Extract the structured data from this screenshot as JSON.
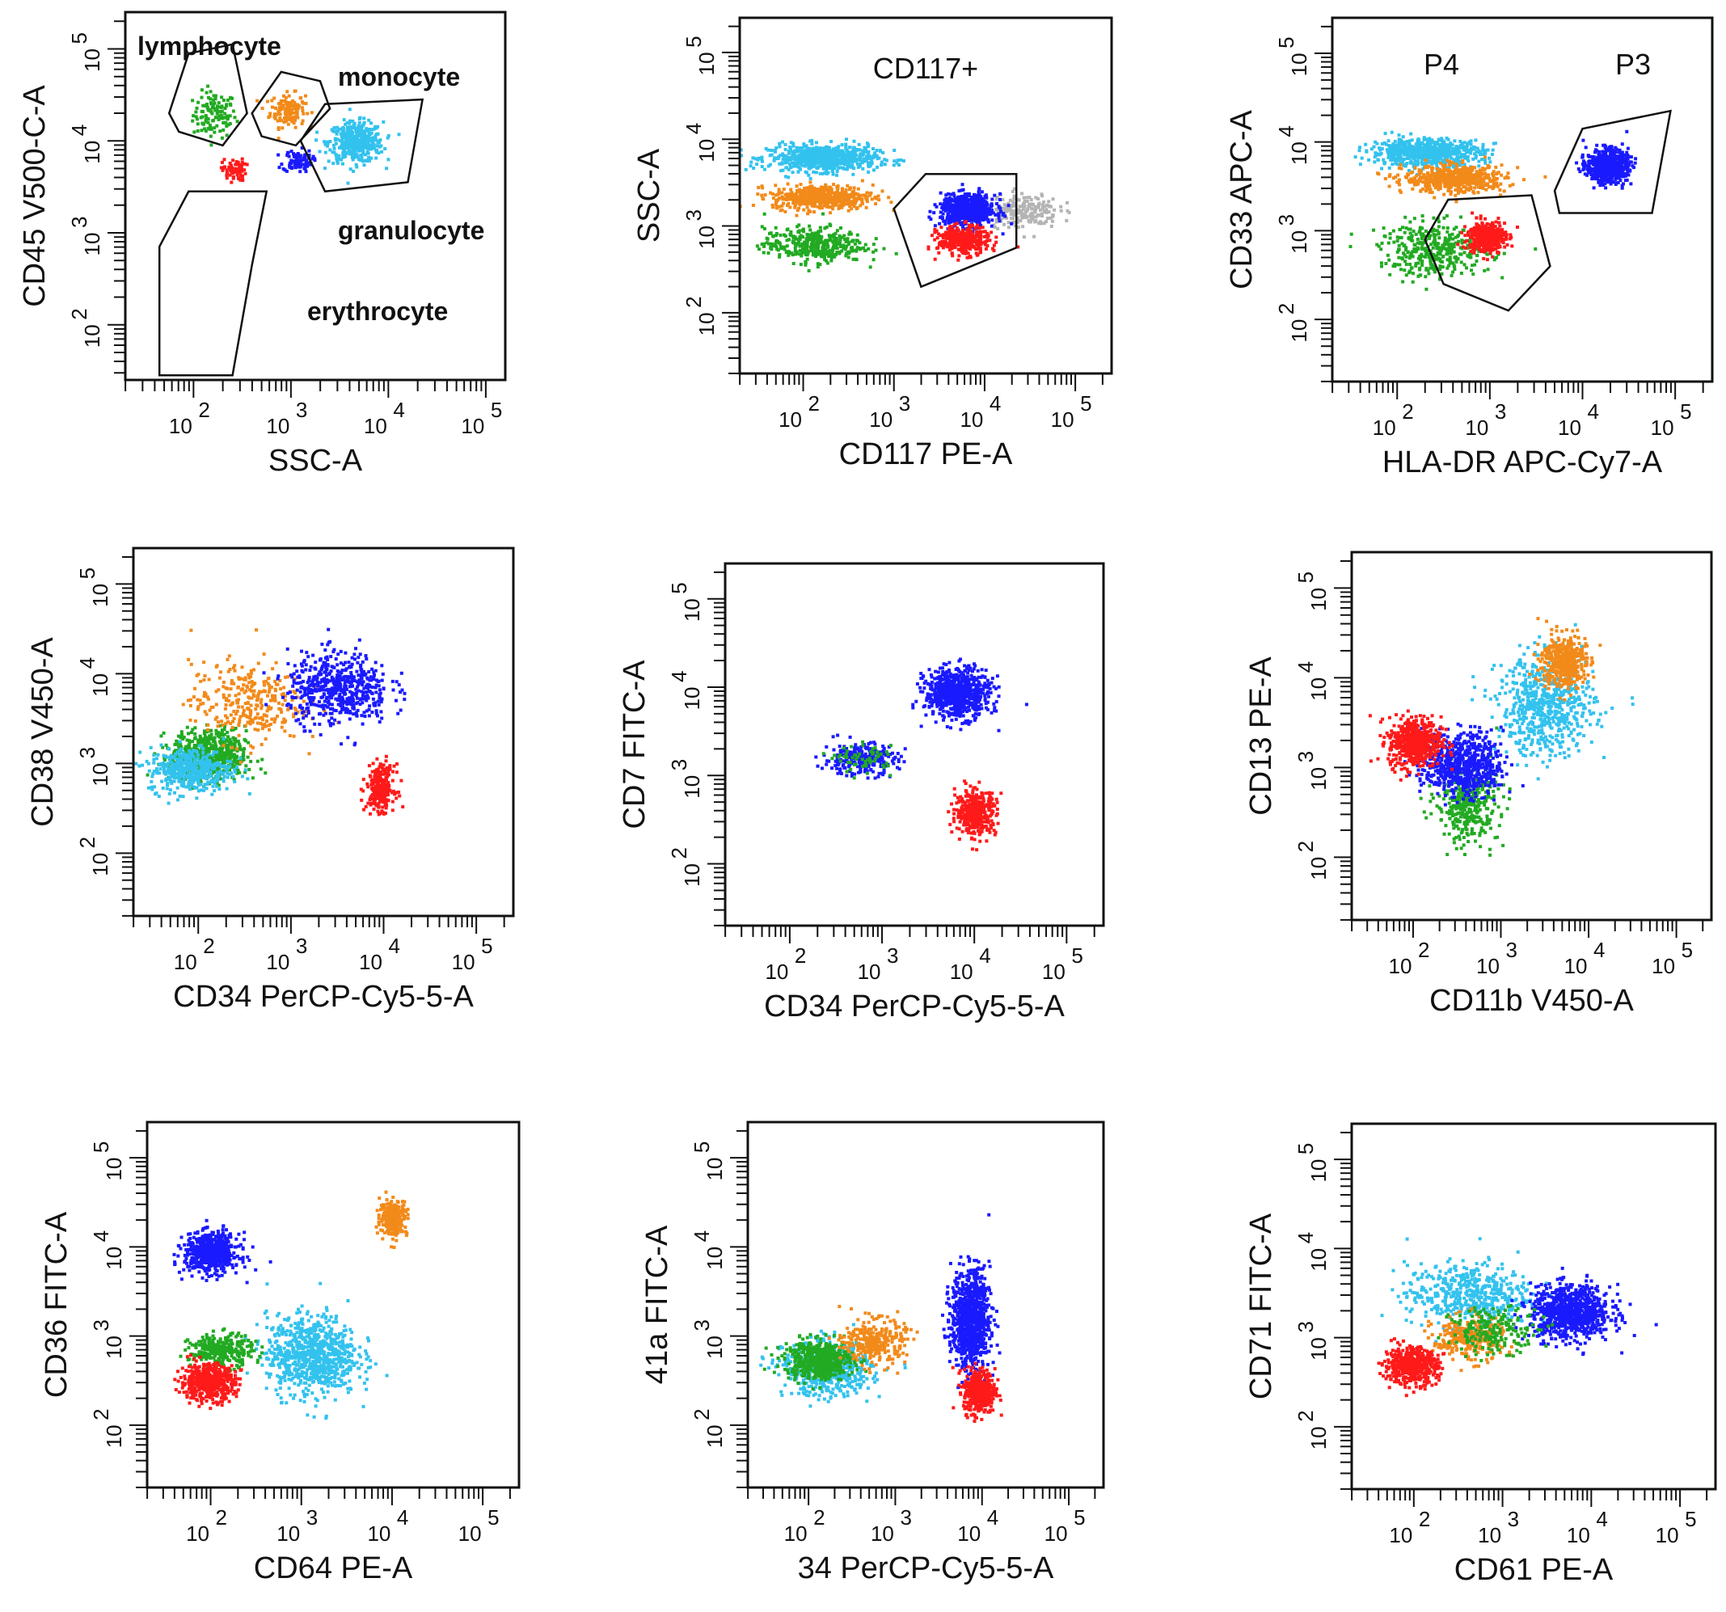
{
  "figure": {
    "description_visible": false
  },
  "colors": {
    "blue": "#1a1aff",
    "red": "#ff1a1a",
    "green": "#22aa22",
    "orange": "#f28a1a",
    "cyan": "#33c2ee",
    "gray": "#b4b4b4",
    "pink": "#f2b8e8",
    "axis": "#111111"
  },
  "chart_data": [
    {
      "type": "scatter",
      "title": "",
      "xlabel": "SSC-A",
      "ylabel": "CD45 V500-C-A",
      "x_ticks": [
        "10",
        "10",
        "10",
        "10"
      ],
      "x_tick_exponents": [
        "2",
        "3",
        "4",
        "5"
      ],
      "y_ticks": [
        "10",
        "10",
        "10",
        "10"
      ],
      "y_tick_exponents": [
        "2",
        "3",
        "4",
        "5"
      ],
      "xlim": [
        1.3,
        5.2
      ],
      "ylim": [
        1.4,
        5.4
      ],
      "scale": "log10",
      "gates": [
        {
          "name": "lymphocyte",
          "points": [
            [
              1.75,
              4.3
            ],
            [
              1.95,
              4.95
            ],
            [
              2.4,
              5.05
            ],
            [
              2.55,
              4.3
            ],
            [
              2.3,
              3.95
            ],
            [
              1.85,
              4.1
            ]
          ]
        },
        {
          "name": "monocyte",
          "points": [
            [
              2.6,
              4.3
            ],
            [
              2.9,
              4.75
            ],
            [
              3.3,
              4.65
            ],
            [
              3.4,
              4.35
            ],
            [
              3.05,
              3.95
            ],
            [
              2.7,
              4.05
            ]
          ]
        },
        {
          "name": "granulocyte",
          "points": [
            [
              3.1,
              4.0
            ],
            [
              3.35,
              4.4
            ],
            [
              4.35,
              4.45
            ],
            [
              4.2,
              3.55
            ],
            [
              3.35,
              3.45
            ]
          ]
        },
        {
          "name": "erythrocyte",
          "points": [
            [
              1.65,
              1.45
            ],
            [
              1.65,
              2.85
            ],
            [
              1.95,
              3.45
            ],
            [
              2.75,
              3.45
            ],
            [
              2.6,
              2.65
            ],
            [
              2.4,
              1.45
            ]
          ]
        }
      ],
      "series": [
        {
          "name": "green",
          "color": "green",
          "center": [
            2.2,
            4.3
          ],
          "spread": [
            0.22,
            0.25
          ],
          "count": 120
        },
        {
          "name": "orange",
          "color": "orange",
          "center": [
            2.95,
            4.35
          ],
          "spread": [
            0.18,
            0.18
          ],
          "count": 150
        },
        {
          "name": "cyan",
          "color": "cyan",
          "center": [
            3.65,
            4.0
          ],
          "spread": [
            0.28,
            0.22
          ],
          "count": 420
        },
        {
          "name": "blue",
          "color": "blue",
          "center": [
            3.05,
            3.8
          ],
          "spread": [
            0.15,
            0.12
          ],
          "count": 90
        },
        {
          "name": "red",
          "color": "red",
          "center": [
            2.4,
            3.7
          ],
          "spread": [
            0.12,
            0.12
          ],
          "count": 70
        }
      ]
    },
    {
      "type": "scatter",
      "title": "CD117+",
      "xlabel": "CD117 PE-A",
      "ylabel": "SSC-A",
      "x_ticks": [
        "10",
        "10",
        "10",
        "10"
      ],
      "x_tick_exponents": [
        "2",
        "3",
        "4",
        "5"
      ],
      "y_ticks": [
        "10",
        "10",
        "10",
        "10"
      ],
      "y_tick_exponents": [
        "2",
        "3",
        "4",
        "5"
      ],
      "xlim": [
        1.3,
        5.4
      ],
      "ylim": [
        1.3,
        5.4
      ],
      "scale": "log10",
      "gates": [
        {
          "name": "CD117+",
          "points": [
            [
              3.0,
              3.2
            ],
            [
              3.3,
              2.3
            ],
            [
              4.35,
              2.75
            ],
            [
              4.35,
              3.6
            ],
            [
              3.35,
              3.6
            ]
          ]
        }
      ],
      "series": [
        {
          "name": "cyan",
          "color": "cyan",
          "center": [
            2.2,
            3.8
          ],
          "spread": [
            0.6,
            0.15
          ],
          "count": 700
        },
        {
          "name": "orange",
          "color": "orange",
          "center": [
            2.2,
            3.35
          ],
          "spread": [
            0.55,
            0.14
          ],
          "count": 500
        },
        {
          "name": "green",
          "color": "green",
          "center": [
            2.1,
            2.8
          ],
          "spread": [
            0.55,
            0.2
          ],
          "count": 380
        },
        {
          "name": "gray",
          "color": "gray",
          "center": [
            4.4,
            3.2
          ],
          "spread": [
            0.4,
            0.2
          ],
          "count": 200
        },
        {
          "name": "blue",
          "color": "blue",
          "center": [
            3.8,
            3.2
          ],
          "spread": [
            0.3,
            0.18
          ],
          "count": 650
        },
        {
          "name": "red",
          "color": "red",
          "center": [
            3.75,
            2.85
          ],
          "spread": [
            0.28,
            0.16
          ],
          "count": 360
        }
      ]
    },
    {
      "type": "scatter",
      "title": "",
      "xlabel": "HLA-DR APC-Cy7-A",
      "ylabel": "CD33 APC-A",
      "x_ticks": [
        "10",
        "10",
        "10",
        "10"
      ],
      "x_tick_exponents": [
        "2",
        "3",
        "4",
        "5"
      ],
      "y_ticks": [
        "10",
        "10",
        "10",
        "10"
      ],
      "y_tick_exponents": [
        "2",
        "3",
        "4",
        "5"
      ],
      "xlim": [
        1.3,
        5.4
      ],
      "ylim": [
        1.3,
        5.4
      ],
      "scale": "log10",
      "gate_labels": [
        "P4",
        "P3"
      ],
      "gates": [
        {
          "name": "P4",
          "points": [
            [
              2.3,
              2.9
            ],
            [
              2.55,
              3.35
            ],
            [
              3.45,
              3.4
            ],
            [
              3.65,
              2.6
            ],
            [
              3.2,
              2.1
            ],
            [
              2.5,
              2.4
            ]
          ]
        },
        {
          "name": "P3",
          "points": [
            [
              3.7,
              3.45
            ],
            [
              4.0,
              4.15
            ],
            [
              4.95,
              4.35
            ],
            [
              4.75,
              3.2
            ],
            [
              3.75,
              3.2
            ]
          ]
        }
      ],
      "series": [
        {
          "name": "cyan",
          "color": "cyan",
          "center": [
            2.3,
            3.9
          ],
          "spread": [
            0.6,
            0.15
          ],
          "count": 700
        },
        {
          "name": "orange",
          "color": "orange",
          "center": [
            2.6,
            3.6
          ],
          "spread": [
            0.55,
            0.15
          ],
          "count": 550
        },
        {
          "name": "green",
          "color": "green",
          "center": [
            2.4,
            2.8
          ],
          "spread": [
            0.6,
            0.3
          ],
          "count": 380
        },
        {
          "name": "red",
          "color": "red",
          "center": [
            2.95,
            2.95
          ],
          "spread": [
            0.2,
            0.18
          ],
          "count": 380
        },
        {
          "name": "blue",
          "color": "blue",
          "center": [
            4.25,
            3.75
          ],
          "spread": [
            0.22,
            0.18
          ],
          "count": 620
        }
      ]
    },
    {
      "type": "scatter",
      "title": "",
      "xlabel": "CD34 PerCP-Cy5-5-A",
      "ylabel": "CD38 V450-A",
      "x_ticks": [
        "10",
        "10",
        "10",
        "10"
      ],
      "x_tick_exponents": [
        "2",
        "3",
        "4",
        "5"
      ],
      "y_ticks": [
        "10",
        "10",
        "10",
        "10"
      ],
      "y_tick_exponents": [
        "2",
        "3",
        "4",
        "5"
      ],
      "xlim": [
        1.3,
        5.4
      ],
      "ylim": [
        1.3,
        5.4
      ],
      "scale": "log10",
      "gates": [],
      "series": [
        {
          "name": "green",
          "color": "green",
          "center": [
            2.1,
            3.1
          ],
          "spread": [
            0.4,
            0.28
          ],
          "count": 620
        },
        {
          "name": "cyan",
          "color": "cyan",
          "center": [
            1.9,
            2.95
          ],
          "spread": [
            0.45,
            0.25
          ],
          "count": 420
        },
        {
          "name": "orange",
          "color": "orange",
          "center": [
            2.5,
            3.7
          ],
          "spread": [
            0.6,
            0.45
          ],
          "count": 300
        },
        {
          "name": "blue",
          "color": "blue",
          "center": [
            3.5,
            3.85
          ],
          "spread": [
            0.55,
            0.4
          ],
          "count": 560
        },
        {
          "name": "red",
          "color": "red",
          "center": [
            3.95,
            2.75
          ],
          "spread": [
            0.15,
            0.25
          ],
          "count": 260
        }
      ]
    },
    {
      "type": "scatter",
      "title": "",
      "xlabel": "CD34 PerCP-Cy5-5-A",
      "ylabel": "CD7 FITC-A",
      "x_ticks": [
        "10",
        "10",
        "10",
        "10"
      ],
      "x_tick_exponents": [
        "2",
        "3",
        "4",
        "5"
      ],
      "y_ticks": [
        "10",
        "10",
        "10",
        "10"
      ],
      "y_tick_exponents": [
        "2",
        "3",
        "4",
        "5"
      ],
      "xlim": [
        1.3,
        5.4
      ],
      "ylim": [
        1.3,
        5.4
      ],
      "scale": "log10",
      "gates": [],
      "series": [
        {
          "name": "blue",
          "color": "blue",
          "center": [
            3.8,
            3.95
          ],
          "spread": [
            0.35,
            0.28
          ],
          "count": 700
        },
        {
          "name": "blue-low",
          "color": "blue",
          "center": [
            2.75,
            3.2
          ],
          "spread": [
            0.4,
            0.18
          ],
          "count": 260
        },
        {
          "name": "red",
          "color": "red",
          "center": [
            4.0,
            2.6
          ],
          "spread": [
            0.22,
            0.25
          ],
          "count": 400
        },
        {
          "name": "green",
          "color": "green",
          "center": [
            2.8,
            3.2
          ],
          "spread": [
            0.3,
            0.15
          ],
          "count": 60
        }
      ]
    },
    {
      "type": "scatter",
      "title": "",
      "xlabel": "CD11b V450-A",
      "ylabel": "CD13 PE-A",
      "x_ticks": [
        "10",
        "10",
        "10",
        "10"
      ],
      "x_tick_exponents": [
        "2",
        "3",
        "4",
        "5"
      ],
      "y_ticks": [
        "10",
        "10",
        "10",
        "10"
      ],
      "y_tick_exponents": [
        "2",
        "3",
        "4",
        "5"
      ],
      "xlim": [
        1.3,
        5.4
      ],
      "ylim": [
        1.3,
        5.4
      ],
      "scale": "log10",
      "gates": [],
      "series": [
        {
          "name": "cyan",
          "color": "cyan",
          "center": [
            3.5,
            3.7
          ],
          "spread": [
            0.55,
            0.55
          ],
          "count": 650
        },
        {
          "name": "orange",
          "color": "orange",
          "center": [
            3.7,
            4.2
          ],
          "spread": [
            0.25,
            0.3
          ],
          "count": 420
        },
        {
          "name": "green",
          "color": "green",
          "center": [
            2.6,
            2.6
          ],
          "spread": [
            0.35,
            0.4
          ],
          "count": 360
        },
        {
          "name": "blue",
          "color": "blue",
          "center": [
            2.55,
            3.05
          ],
          "spread": [
            0.45,
            0.35
          ],
          "count": 650
        },
        {
          "name": "red",
          "color": "red",
          "center": [
            2.0,
            3.3
          ],
          "spread": [
            0.3,
            0.28
          ],
          "count": 520
        }
      ]
    },
    {
      "type": "scatter",
      "title": "",
      "xlabel": "CD64 PE-A",
      "ylabel": "CD36 FITC-A",
      "x_ticks": [
        "10",
        "10",
        "10",
        "10"
      ],
      "x_tick_exponents": [
        "2",
        "3",
        "4",
        "5"
      ],
      "y_ticks": [
        "10",
        "10",
        "10",
        "10"
      ],
      "y_tick_exponents": [
        "2",
        "3",
        "4",
        "5"
      ],
      "xlim": [
        1.3,
        5.4
      ],
      "ylim": [
        1.3,
        5.4
      ],
      "scale": "log10",
      "gates": [],
      "series": [
        {
          "name": "cyan",
          "color": "cyan",
          "center": [
            3.1,
            2.8
          ],
          "spread": [
            0.5,
            0.45
          ],
          "count": 800
        },
        {
          "name": "blue",
          "color": "blue",
          "center": [
            2.0,
            3.95
          ],
          "spread": [
            0.3,
            0.22
          ],
          "count": 600
        },
        {
          "name": "green",
          "color": "green",
          "center": [
            2.1,
            2.85
          ],
          "spread": [
            0.35,
            0.18
          ],
          "count": 300
        },
        {
          "name": "red",
          "color": "red",
          "center": [
            1.95,
            2.5
          ],
          "spread": [
            0.3,
            0.2
          ],
          "count": 520
        },
        {
          "name": "orange",
          "color": "orange",
          "center": [
            4.0,
            4.35
          ],
          "spread": [
            0.15,
            0.2
          ],
          "count": 260
        }
      ]
    },
    {
      "type": "scatter",
      "title": "",
      "xlabel": "34 PerCP-Cy5-5-A",
      "ylabel": "41a FITC-A",
      "x_ticks": [
        "10",
        "10",
        "10",
        "10"
      ],
      "x_tick_exponents": [
        "2",
        "3",
        "4",
        "5"
      ],
      "y_ticks": [
        "10",
        "10",
        "10",
        "10"
      ],
      "y_tick_exponents": [
        "2",
        "3",
        "4",
        "5"
      ],
      "xlim": [
        1.3,
        5.4
      ],
      "ylim": [
        1.3,
        5.4
      ],
      "scale": "log10",
      "gates": [],
      "series": [
        {
          "name": "cyan",
          "color": "cyan",
          "center": [
            2.2,
            2.65
          ],
          "spread": [
            0.5,
            0.3
          ],
          "count": 600
        },
        {
          "name": "green",
          "color": "green",
          "center": [
            2.1,
            2.75
          ],
          "spread": [
            0.4,
            0.22
          ],
          "count": 500
        },
        {
          "name": "orange",
          "color": "orange",
          "center": [
            2.75,
            2.95
          ],
          "spread": [
            0.35,
            0.25
          ],
          "count": 300
        },
        {
          "name": "blue",
          "color": "blue",
          "center": [
            3.85,
            3.2
          ],
          "spread": [
            0.22,
            0.55
          ],
          "count": 900
        },
        {
          "name": "red",
          "color": "red",
          "center": [
            3.95,
            2.4
          ],
          "spread": [
            0.18,
            0.25
          ],
          "count": 420
        }
      ]
    },
    {
      "type": "scatter",
      "title": "",
      "xlabel": "CD61 PE-A",
      "ylabel": "CD71 FITC-A",
      "x_ticks": [
        "10",
        "10",
        "10",
        "10"
      ],
      "x_tick_exponents": [
        "2",
        "3",
        "4",
        "5"
      ],
      "y_ticks": [
        "10",
        "10",
        "10",
        "10"
      ],
      "y_tick_exponents": [
        "2",
        "3",
        "4",
        "5"
      ],
      "xlim": [
        1.3,
        5.4
      ],
      "ylim": [
        1.3,
        5.4
      ],
      "scale": "log10",
      "gates": [],
      "series": [
        {
          "name": "cyan",
          "color": "cyan",
          "center": [
            2.6,
            3.5
          ],
          "spread": [
            0.7,
            0.35
          ],
          "count": 500
        },
        {
          "name": "blue",
          "color": "blue",
          "center": [
            3.75,
            3.3
          ],
          "spread": [
            0.45,
            0.3
          ],
          "count": 850
        },
        {
          "name": "orange",
          "color": "orange",
          "center": [
            2.6,
            3.0
          ],
          "spread": [
            0.4,
            0.25
          ],
          "count": 260
        },
        {
          "name": "green",
          "color": "green",
          "center": [
            2.9,
            3.1
          ],
          "spread": [
            0.5,
            0.25
          ],
          "count": 200
        },
        {
          "name": "red",
          "color": "red",
          "center": [
            1.95,
            2.7
          ],
          "spread": [
            0.3,
            0.2
          ],
          "count": 500
        }
      ]
    }
  ]
}
